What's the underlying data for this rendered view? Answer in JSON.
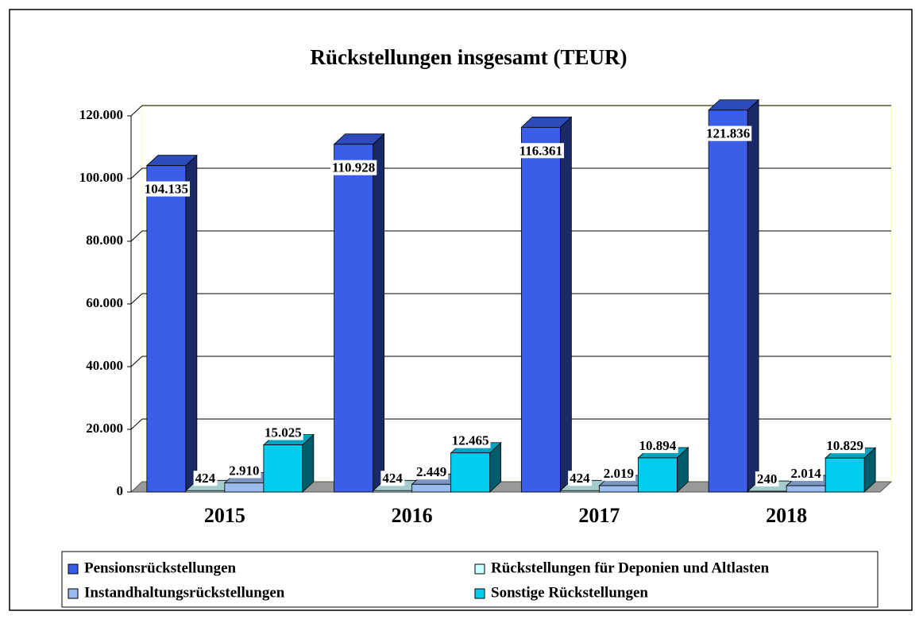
{
  "chart_data": {
    "type": "bar3d",
    "title": "Rückstellungen insgesamt (TEUR)",
    "categories": [
      "2015",
      "2016",
      "2017",
      "2018"
    ],
    "series": [
      {
        "name": "Pensionsrückstellungen",
        "color": "#3a5ee8",
        "values": [
          104135,
          110928,
          116361,
          121836
        ],
        "value_labels": [
          "104.135",
          "110.928",
          "116.361",
          "121.836"
        ]
      },
      {
        "name": "Rückstellungen für Deponien und Altlasten",
        "color": "#ccffff",
        "values": [
          424,
          424,
          424,
          240
        ]
      },
      {
        "name": "Instandhaltungsrückstellungen",
        "color": "#99bbee",
        "values": [
          2910,
          2449,
          2019,
          2014
        ],
        "value_labels": [
          "2.910",
          "2.449",
          "2.019",
          "2.014"
        ]
      },
      {
        "name": "Sonstige Rückstellungen",
        "color": "#00ccee",
        "values": [
          15025,
          12465,
          10894,
          10829
        ],
        "value_labels": [
          "15.025",
          "12.465",
          "10.894",
          "10.829"
        ]
      }
    ],
    "ylim": [
      0,
      120000
    ],
    "yticks": [
      0,
      {
        "value": 20000,
        "label": "20.000"
      },
      {
        "value": 40000,
        "label": "40.000"
      },
      {
        "value": 60000,
        "label": "60.000"
      },
      {
        "value": 80000,
        "label": "80.000"
      },
      {
        "value": 100000,
        "label": "100.000"
      },
      {
        "value": 120000,
        "label": "120.000"
      }
    ],
    "grid": true,
    "legend": "bottom"
  }
}
